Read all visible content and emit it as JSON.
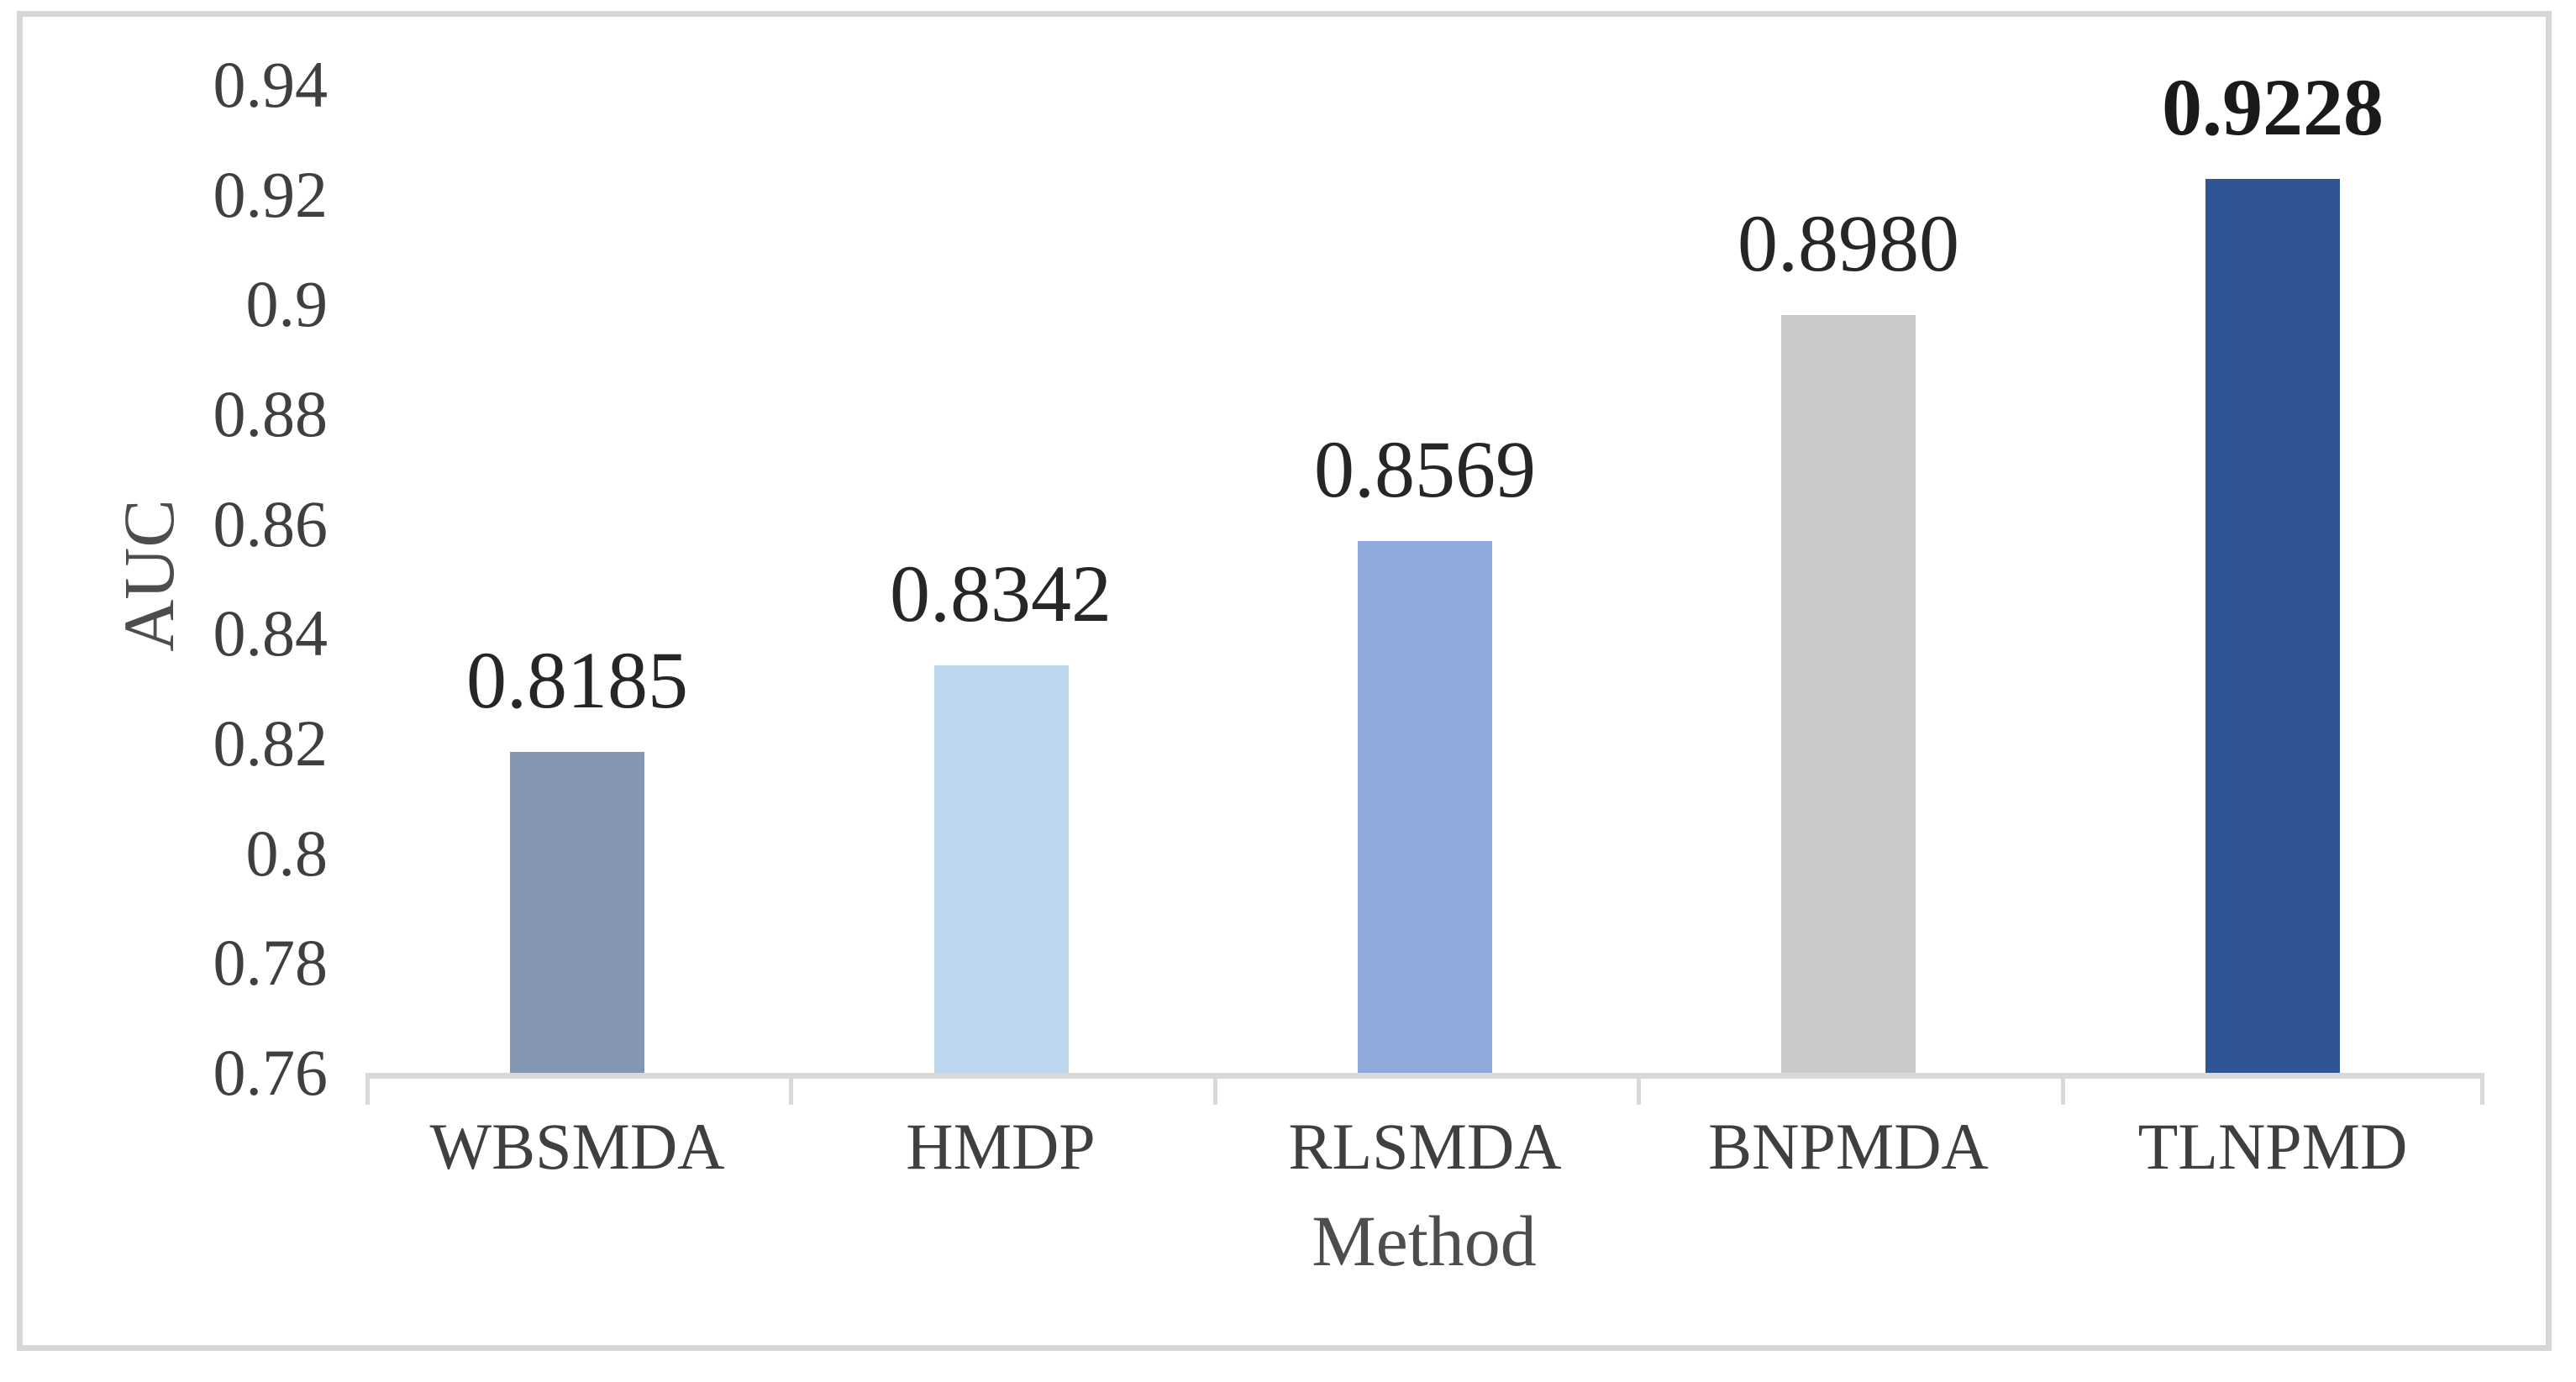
{
  "chart_data": {
    "type": "bar",
    "title": "",
    "xlabel": "Method",
    "ylabel": "AUC",
    "categories": [
      "WBSMDA",
      "HMDP",
      "RLSMDA",
      "BNPMDA",
      "TLNPMD"
    ],
    "values": [
      0.8185,
      0.8342,
      0.8569,
      0.898,
      0.9228
    ],
    "value_labels": [
      "0.8185",
      "0.8342",
      "0.8569",
      "0.8980",
      "0.9228"
    ],
    "bar_colors": [
      "#8496B0",
      "#BDD7EE",
      "#8FAADC",
      "#C9C9C9",
      "#2F5597"
    ],
    "emphasized_method": "TLNPMD",
    "ylim": [
      0.76,
      0.94
    ],
    "ytick_step": 0.02,
    "yticks": [
      "0.94",
      "0.92",
      "0.9",
      "0.88",
      "0.86",
      "0.84",
      "0.82",
      "0.8",
      "0.78",
      "0.76"
    ],
    "grid": false,
    "legend": null
  },
  "colors": {
    "frame_border": "#d6d6d6",
    "axis_line": "#d9d9d9",
    "tick_text": "#3f3f3f",
    "value_text": "#262626",
    "axis_title_text": "#4d4d4d"
  }
}
